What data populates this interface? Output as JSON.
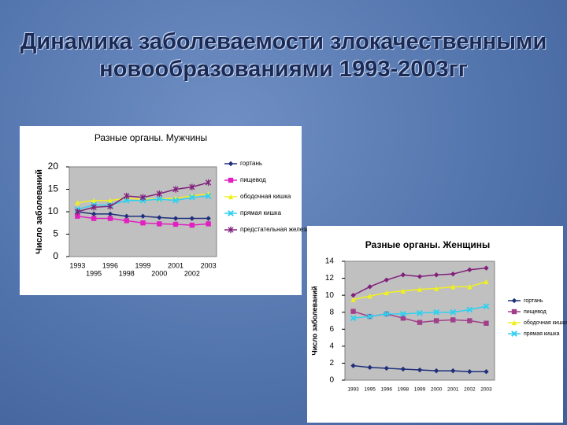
{
  "title": "Динамика заболеваемости злокачественными новообразованиями 1993-2003гг",
  "chart_data": [
    {
      "type": "line",
      "title": "Разные органы. Мужчины",
      "ylabel": "Число заболеваний",
      "categories": [
        "1993",
        "1995",
        "1996",
        "1998",
        "1999",
        "2000",
        "2001",
        "2002",
        "2003"
      ],
      "ylim": [
        0,
        20
      ],
      "yticks": [
        0,
        5,
        10,
        15,
        20
      ],
      "legend": "right",
      "series": [
        {
          "name": "гортань",
          "color": "#1f2f7a",
          "marker": "diamond",
          "values": [
            10,
            9.5,
            9.5,
            9,
            9,
            8.7,
            8.5,
            8.5,
            8.5
          ]
        },
        {
          "name": "пищевод",
          "color": "#e020c0",
          "marker": "square",
          "values": [
            9,
            8.5,
            8.5,
            8,
            7.5,
            7.3,
            7.2,
            7,
            7.3
          ]
        },
        {
          "name": "ободочная кишка",
          "color": "#f0f020",
          "marker": "triangle",
          "values": [
            12,
            12.5,
            12.5,
            13,
            12.8,
            12.8,
            13,
            13.5,
            14
          ]
        },
        {
          "name": "прямая кишка",
          "color": "#30d0f0",
          "marker": "x",
          "values": [
            10.5,
            11.5,
            11.5,
            12.5,
            12.5,
            12.8,
            12.5,
            13.2,
            13.5
          ]
        },
        {
          "name": "предстательная железа",
          "color": "#80207a",
          "marker": "star",
          "values": [
            10,
            11,
            11.2,
            13.5,
            13.2,
            14,
            15,
            15.5,
            16.5
          ]
        }
      ]
    },
    {
      "type": "line",
      "title": "Разные органы. Женщины",
      "ylabel": "Число заболеваний",
      "categories": [
        "1993",
        "1995",
        "1996",
        "1998",
        "1999",
        "2000",
        "2001",
        "2002",
        "2003"
      ],
      "ylim": [
        0,
        14
      ],
      "yticks": [
        0,
        2,
        4,
        6,
        8,
        10,
        12,
        14
      ],
      "legend": "right",
      "series": [
        {
          "name": "гортань",
          "color": "#1f2f7a",
          "marker": "diamond",
          "values": [
            1.7,
            1.5,
            1.4,
            1.3,
            1.2,
            1.1,
            1.1,
            1.0,
            1.0
          ]
        },
        {
          "name": "пищевод",
          "color": "#a0408a",
          "marker": "square",
          "values": [
            8.1,
            7.5,
            7.8,
            7.3,
            6.8,
            7,
            7.1,
            7,
            6.7
          ]
        },
        {
          "name": "ободочная кишка",
          "color": "#f0f020",
          "marker": "triangle",
          "values": [
            9.5,
            9.9,
            10.3,
            10.5,
            10.7,
            10.8,
            11,
            11,
            11.6
          ]
        },
        {
          "name": "прямая кишка",
          "color": "#30d0f0",
          "marker": "x",
          "values": [
            7.3,
            7.5,
            7.8,
            7.8,
            7.9,
            8,
            8,
            8.3,
            8.7
          ]
        },
        {
          "color": "#80207a",
          "marker": "diamond",
          "values": [
            10,
            11,
            11.8,
            12.4,
            12.2,
            12.4,
            12.5,
            13,
            13.2
          ]
        }
      ]
    }
  ]
}
